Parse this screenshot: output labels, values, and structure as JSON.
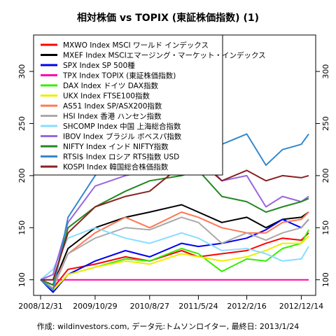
{
  "chart_data": {
    "type": "line",
    "title": "相対株価 vs TOPIX (東証株価指数) (1)",
    "caption": "作成: wildinvestors.com, データ元:トムソンロイター, 最終日: 2013/1/24",
    "x_ticks": [
      "2008/12/31",
      "2009/10/29",
      "2010/8/27",
      "2011/5/24",
      "2012/2/16",
      "2012/12/14"
    ],
    "x_range": [
      "2008/12/31",
      "2013/1/24"
    ],
    "y_ticks": [
      100,
      150,
      200,
      250,
      300
    ],
    "ylim": [
      85,
      335
    ],
    "legend_position": "top-left",
    "series": [
      {
        "name": "MXWO Index MSCI ワールド インデックス",
        "color": "#ff0000",
        "x": [
          "2008/12/31",
          "2009/3/10",
          "2009/6/1",
          "2009/10/29",
          "2010/4/15",
          "2010/8/27",
          "2011/2/20",
          "2011/5/24",
          "2011/10/1",
          "2012/2/16",
          "2012/6/1",
          "2012/9/1",
          "2012/12/14",
          "2013/1/24"
        ],
        "values": [
          100,
          92,
          110,
          115,
          122,
          118,
          128,
          122,
          125,
          128,
          135,
          140,
          138,
          145
        ]
      },
      {
        "name": "MXEF Index MSCIエマージング・マーケット・インデックス",
        "color": "#000000",
        "x": [
          "2008/12/31",
          "2009/3/10",
          "2009/6/1",
          "2009/10/29",
          "2010/4/15",
          "2010/8/27",
          "2011/2/20",
          "2011/5/24",
          "2011/10/1",
          "2012/2/16",
          "2012/6/1",
          "2012/9/1",
          "2012/12/14",
          "2013/1/24"
        ],
        "values": [
          100,
          95,
          130,
          150,
          160,
          165,
          172,
          165,
          155,
          160,
          150,
          158,
          160,
          165
        ]
      },
      {
        "name": "SPX Index SP 500種",
        "color": "#0000ee",
        "x": [
          "2008/12/31",
          "2009/3/10",
          "2009/6/1",
          "2009/10/29",
          "2010/4/15",
          "2010/8/27",
          "2011/2/20",
          "2011/5/24",
          "2011/10/1",
          "2012/2/16",
          "2012/6/1",
          "2012/9/1",
          "2012/12/14",
          "2013/1/24"
        ],
        "values": [
          100,
          88,
          105,
          118,
          128,
          122,
          135,
          132,
          135,
          140,
          148,
          158,
          150,
          158
        ]
      },
      {
        "name": "TPX Index TOPIX (東証株価指数)",
        "color": "#ff00aa",
        "x": [
          "2008/12/31",
          "2013/1/24"
        ],
        "values": [
          100,
          100
        ]
      },
      {
        "name": "DAX Index ドイツ DAX指数",
        "color": "#33ee00",
        "x": [
          "2008/12/31",
          "2009/3/10",
          "2009/6/1",
          "2009/10/29",
          "2010/4/15",
          "2010/8/27",
          "2011/2/20",
          "2011/5/24",
          "2011/10/1",
          "2012/2/16",
          "2012/6/1",
          "2012/9/1",
          "2012/12/14",
          "2013/1/24"
        ],
        "values": [
          100,
          90,
          105,
          112,
          120,
          118,
          130,
          125,
          108,
          120,
          118,
          130,
          135,
          148
        ]
      },
      {
        "name": "UKX Index FTSE100指数",
        "color": "#eeee00",
        "x": [
          "2008/12/31",
          "2009/3/10",
          "2009/6/1",
          "2009/10/29",
          "2010/4/15",
          "2010/8/27",
          "2011/2/20",
          "2011/5/24",
          "2011/10/1",
          "2012/2/16",
          "2012/6/1",
          "2012/9/1",
          "2012/12/14",
          "2013/1/24"
        ],
        "values": [
          100,
          90,
          105,
          112,
          118,
          115,
          125,
          122,
          118,
          122,
          128,
          135,
          135,
          142
        ]
      },
      {
        "name": "AS51 Index SP/ASX200指数",
        "color": "#ff7755",
        "x": [
          "2008/12/31",
          "2009/3/10",
          "2009/6/1",
          "2009/10/29",
          "2010/4/15",
          "2010/8/27",
          "2011/2/20",
          "2011/5/24",
          "2011/10/1",
          "2012/2/16",
          "2012/6/1",
          "2012/9/1",
          "2012/12/14",
          "2013/1/24"
        ],
        "values": [
          100,
          95,
          125,
          145,
          160,
          150,
          165,
          160,
          150,
          145,
          145,
          155,
          158,
          165
        ]
      },
      {
        "name": "HSI Index 香港 ハンセン指数",
        "color": "#aaaaaa",
        "x": [
          "2008/12/31",
          "2009/3/10",
          "2009/6/1",
          "2009/10/29",
          "2010/4/15",
          "2010/8/27",
          "2011/2/20",
          "2011/5/24",
          "2011/10/1",
          "2012/2/16",
          "2012/6/1",
          "2012/9/1",
          "2012/12/14",
          "2013/1/24"
        ],
        "values": [
          100,
          92,
          125,
          140,
          150,
          148,
          160,
          155,
          135,
          145,
          138,
          145,
          150,
          158
        ]
      },
      {
        "name": "SHCOMP Index 中国 上海総合指数",
        "color": "#88ddff",
        "x": [
          "2008/12/31",
          "2009/3/10",
          "2009/6/1",
          "2009/10/29",
          "2010/4/15",
          "2010/8/27",
          "2011/2/20",
          "2011/5/24",
          "2011/10/1",
          "2012/2/16",
          "2012/6/1",
          "2012/9/1",
          "2012/12/14",
          "2013/1/24"
        ],
        "values": [
          100,
          110,
          140,
          150,
          140,
          135,
          145,
          140,
          128,
          130,
          125,
          118,
          120,
          132
        ]
      },
      {
        "name": "IBOV Index ブラジル ボベスパ指数",
        "color": "#9966dd",
        "x": [
          "2008/12/31",
          "2009/3/10",
          "2009/6/1",
          "2009/10/29",
          "2010/4/15",
          "2010/8/27",
          "2011/2/20",
          "2011/5/24",
          "2011/10/1",
          "2012/2/16",
          "2012/6/1",
          "2012/9/1",
          "2012/12/14",
          "2013/1/24"
        ],
        "values": [
          100,
          105,
          155,
          190,
          200,
          205,
          215,
          220,
          195,
          200,
          170,
          180,
          175,
          180
        ]
      },
      {
        "name": "NIFTY Index インド NIFTY指数",
        "color": "#228822",
        "x": [
          "2008/12/31",
          "2009/3/10",
          "2009/6/1",
          "2009/10/29",
          "2010/4/15",
          "2010/8/27",
          "2011/2/20",
          "2011/5/24",
          "2011/10/1",
          "2012/2/16",
          "2012/6/1",
          "2012/9/1",
          "2012/12/14",
          "2013/1/24"
        ],
        "values": [
          100,
          95,
          150,
          170,
          185,
          195,
          200,
          205,
          180,
          175,
          165,
          170,
          175,
          178
        ]
      },
      {
        "name": "RTSI$ Index ロシア RTS指数 USD",
        "color": "#3388cc",
        "x": [
          "2008/12/31",
          "2009/3/10",
          "2009/6/1",
          "2009/10/29",
          "2010/4/15",
          "2010/8/27",
          "2011/2/20",
          "2011/5/24",
          "2011/10/1",
          "2012/2/16",
          "2012/6/1",
          "2012/9/1",
          "2012/12/14",
          "2013/1/24"
        ],
        "values": [
          100,
          90,
          160,
          200,
          230,
          220,
          300,
          280,
          230,
          240,
          210,
          225,
          230,
          240
        ]
      },
      {
        "name": "KOSPI Index 韓国総合株価指数",
        "color": "#882222",
        "x": [
          "2008/12/31",
          "2009/3/10",
          "2009/6/1",
          "2009/10/29",
          "2010/4/15",
          "2010/8/27",
          "2011/2/20",
          "2011/5/24",
          "2011/10/1",
          "2012/2/16",
          "2012/6/1",
          "2012/9/1",
          "2012/12/14",
          "2013/1/24"
        ],
        "values": [
          100,
          100,
          145,
          170,
          180,
          185,
          210,
          215,
          195,
          205,
          195,
          200,
          198,
          200
        ]
      }
    ]
  }
}
